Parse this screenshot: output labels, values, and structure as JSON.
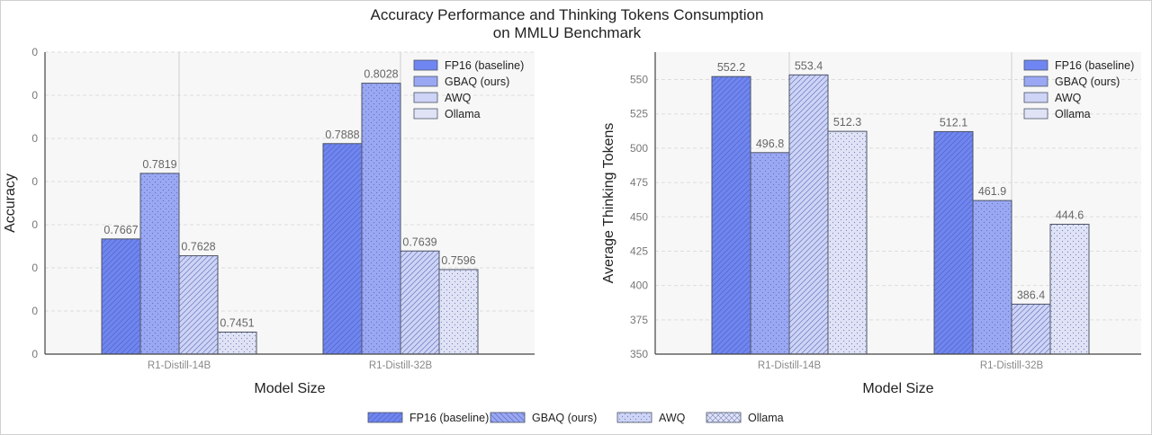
{
  "figure": {
    "title_line1": "Accuracy Performance and Thinking Tokens Consumption",
    "title_line2": "on MMLU Benchmark"
  },
  "legend": {
    "items": [
      {
        "label": "FP16 (baseline)",
        "color": "#6f86f2",
        "pattern": "diag-back"
      },
      {
        "label": "GBAQ (ours)",
        "color": "#9aa8f4",
        "pattern": "diag-fwd"
      },
      {
        "label": "AWQ",
        "color": "#cdd4f6",
        "pattern": "dots"
      },
      {
        "label": "Ollama",
        "color": "#dfe3f5",
        "pattern": "cross"
      }
    ]
  },
  "chart_data": [
    {
      "type": "bar",
      "title": "",
      "xlabel": "Model Size",
      "ylabel": "Accuracy",
      "categories": [
        "R1-Distill-14B",
        "R1-Distill-32B"
      ],
      "ylim": [
        0.74,
        0.81
      ],
      "yticks": [
        0.74,
        0.75,
        0.76,
        0.77,
        0.78,
        0.79,
        0.8,
        0.81
      ],
      "ytick_labels": [
        "0",
        "0",
        "0",
        "0",
        "0",
        "0",
        "0",
        "0"
      ],
      "series": [
        {
          "name": "FP16 (baseline)",
          "values": [
            0.7667,
            0.7888
          ],
          "labels": [
            "0.7667",
            "0.7888"
          ],
          "color": "#6f86f2",
          "pattern": "diag-back"
        },
        {
          "name": "GBAQ (ours)",
          "values": [
            0.7819,
            0.8028
          ],
          "labels": [
            "0.7819",
            "0.8028"
          ],
          "color": "#9aa8f4",
          "pattern": "dots"
        },
        {
          "name": "AWQ",
          "values": [
            0.7628,
            0.7639
          ],
          "labels": [
            "0.7628",
            "0.7639"
          ],
          "color": "#cdd4f6",
          "pattern": "diag-back"
        },
        {
          "name": "Ollama",
          "values": [
            0.7451,
            0.7596
          ],
          "labels": [
            "0.7451",
            "0.7596"
          ],
          "color": "#dfe3f5",
          "pattern": "dots"
        }
      ],
      "legend": [
        "FP16 (baseline)",
        "GBAQ (ours)",
        "AWQ",
        "Ollama"
      ],
      "legend_position": "top-right",
      "grid": true
    },
    {
      "type": "bar",
      "title": "",
      "xlabel": "Model Size",
      "ylabel": "Average Thinking Tokens",
      "categories": [
        "R1-Distill-14B",
        "R1-Distill-32B"
      ],
      "ylim": [
        350,
        570
      ],
      "yticks": [
        350,
        375,
        400,
        425,
        450,
        475,
        500,
        525,
        550
      ],
      "ytick_labels": [
        "350",
        "375",
        "400",
        "425",
        "450",
        "475",
        "500",
        "525",
        "550"
      ],
      "series": [
        {
          "name": "FP16 (baseline)",
          "values": [
            552.2,
            512.1
          ],
          "labels": [
            "552.2",
            "512.1"
          ],
          "color": "#6f86f2",
          "pattern": "diag-back"
        },
        {
          "name": "GBAQ (ours)",
          "values": [
            496.8,
            461.9
          ],
          "labels": [
            "496.8",
            "461.9"
          ],
          "color": "#9aa8f4",
          "pattern": "dots"
        },
        {
          "name": "AWQ",
          "values": [
            553.4,
            386.4
          ],
          "labels": [
            "553.4",
            "386.4"
          ],
          "color": "#cdd4f6",
          "pattern": "diag-back"
        },
        {
          "name": "Ollama",
          "values": [
            512.3,
            444.6
          ],
          "labels": [
            "512.3",
            "444.6"
          ],
          "color": "#dfe3f5",
          "pattern": "dots"
        }
      ],
      "legend": [
        "FP16 (baseline)",
        "GBAQ (ours)",
        "AWQ",
        "Ollama"
      ],
      "legend_position": "top-right",
      "grid": true
    }
  ]
}
